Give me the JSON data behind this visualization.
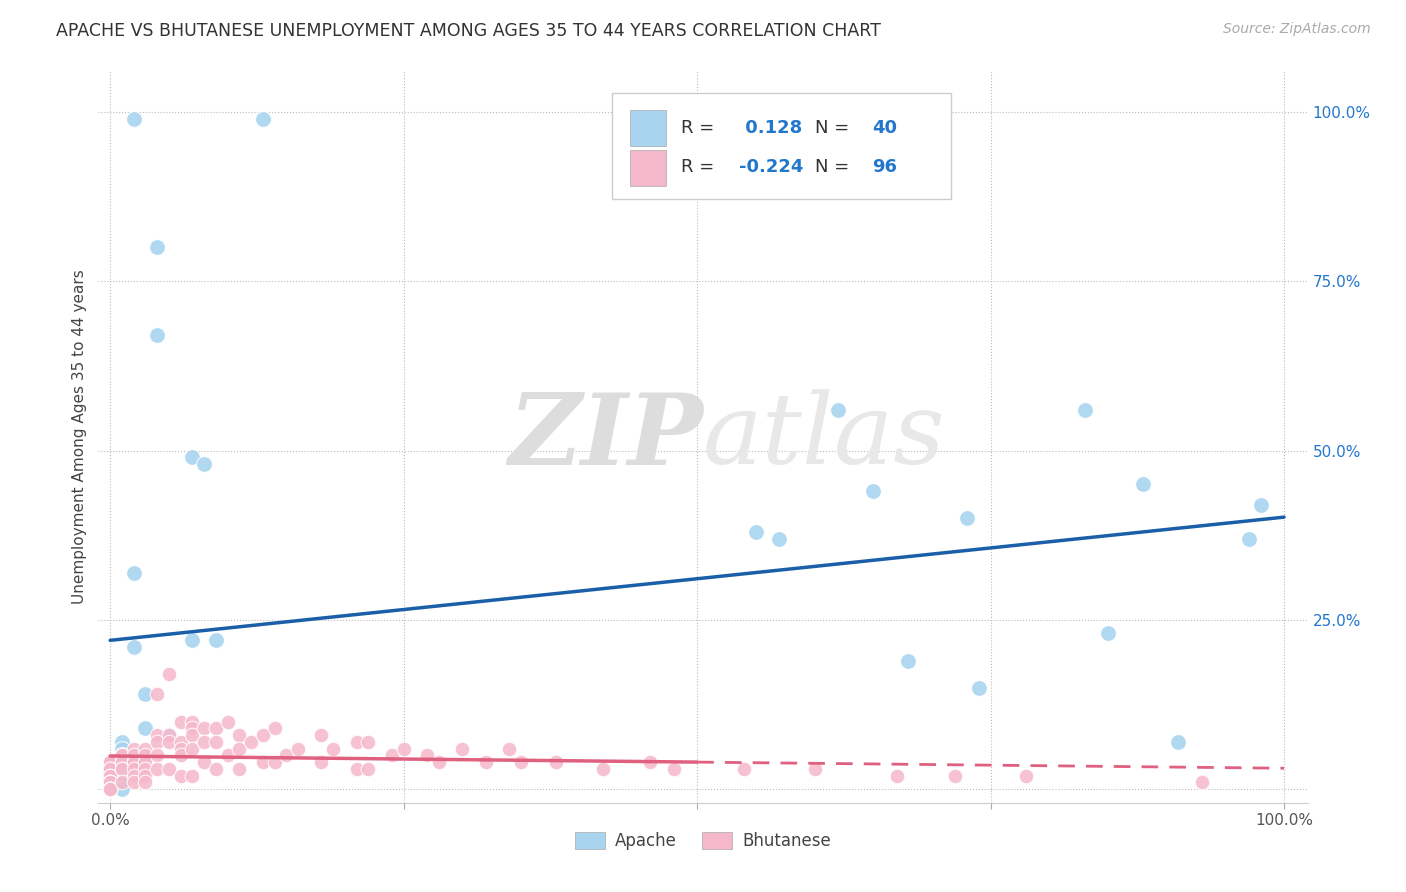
{
  "title": "APACHE VS BHUTANESE UNEMPLOYMENT AMONG AGES 35 TO 44 YEARS CORRELATION CHART",
  "source": "Source: ZipAtlas.com",
  "ylabel": "Unemployment Among Ages 35 to 44 years",
  "xlim": [
    -0.01,
    1.02
  ],
  "ylim": [
    -0.02,
    1.06
  ],
  "xticks": [
    0.0,
    0.25,
    0.5,
    0.75,
    1.0
  ],
  "xtick_labels": [
    "0.0%",
    "",
    "",
    "",
    "100.0%"
  ],
  "yticks": [
    0.0,
    0.25,
    0.5,
    0.75,
    1.0
  ],
  "ytick_labels": [
    "",
    "25.0%",
    "50.0%",
    "75.0%",
    "100.0%"
  ],
  "apache_color": "#a8d4f0",
  "bhutanese_color": "#f5b8cb",
  "apache_line_color": "#1a5fa8",
  "bhutanese_line_color": "#e06080",
  "apache_R": 0.128,
  "apache_N": 40,
  "bhutanese_R": -0.224,
  "bhutanese_N": 96,
  "watermark_zip": "ZIP",
  "watermark_atlas": "atlas",
  "background_color": "#ffffff",
  "apache_x": [
    0.02,
    0.04,
    0.04,
    0.13,
    0.02,
    0.07,
    0.08,
    0.07,
    0.09,
    0.02,
    0.03,
    0.03,
    0.05,
    0.05,
    0.01,
    0.01,
    0.01,
    0.02,
    0.02,
    0.01,
    0.0,
    0.0,
    0.0,
    0.0,
    0.0,
    0.01,
    0.01,
    0.55,
    0.57,
    0.62,
    0.65,
    0.68,
    0.73,
    0.74,
    0.83,
    0.85,
    0.88,
    0.91,
    0.98,
    0.97
  ],
  "apache_y": [
    0.32,
    0.8,
    0.67,
    0.99,
    0.99,
    0.49,
    0.48,
    0.22,
    0.22,
    0.21,
    0.14,
    0.09,
    0.08,
    0.08,
    0.07,
    0.06,
    0.05,
    0.04,
    0.04,
    0.03,
    0.03,
    0.02,
    0.02,
    0.01,
    0.01,
    0.01,
    0.0,
    0.38,
    0.37,
    0.56,
    0.44,
    0.19,
    0.4,
    0.15,
    0.56,
    0.23,
    0.45,
    0.07,
    0.42,
    0.37
  ],
  "bhutanese_x": [
    0.0,
    0.0,
    0.0,
    0.0,
    0.0,
    0.0,
    0.0,
    0.0,
    0.0,
    0.0,
    0.0,
    0.0,
    0.0,
    0.0,
    0.01,
    0.01,
    0.01,
    0.01,
    0.01,
    0.01,
    0.01,
    0.02,
    0.02,
    0.02,
    0.02,
    0.02,
    0.02,
    0.02,
    0.03,
    0.03,
    0.03,
    0.03,
    0.03,
    0.03,
    0.04,
    0.04,
    0.04,
    0.04,
    0.04,
    0.05,
    0.05,
    0.05,
    0.05,
    0.06,
    0.06,
    0.06,
    0.06,
    0.06,
    0.07,
    0.07,
    0.07,
    0.07,
    0.07,
    0.08,
    0.08,
    0.08,
    0.09,
    0.09,
    0.09,
    0.1,
    0.1,
    0.11,
    0.11,
    0.11,
    0.12,
    0.13,
    0.13,
    0.14,
    0.14,
    0.15,
    0.16,
    0.18,
    0.18,
    0.19,
    0.21,
    0.21,
    0.22,
    0.22,
    0.24,
    0.25,
    0.27,
    0.28,
    0.3,
    0.32,
    0.34,
    0.35,
    0.38,
    0.42,
    0.46,
    0.48,
    0.54,
    0.6,
    0.67,
    0.72,
    0.78,
    0.93
  ],
  "bhutanese_y": [
    0.04,
    0.04,
    0.03,
    0.03,
    0.02,
    0.02,
    0.01,
    0.01,
    0.01,
    0.0,
    0.0,
    0.0,
    0.0,
    0.0,
    0.05,
    0.05,
    0.04,
    0.04,
    0.03,
    0.03,
    0.01,
    0.06,
    0.05,
    0.04,
    0.04,
    0.03,
    0.02,
    0.01,
    0.06,
    0.05,
    0.04,
    0.03,
    0.02,
    0.01,
    0.14,
    0.08,
    0.07,
    0.05,
    0.03,
    0.17,
    0.08,
    0.07,
    0.03,
    0.1,
    0.07,
    0.06,
    0.05,
    0.02,
    0.1,
    0.09,
    0.08,
    0.06,
    0.02,
    0.09,
    0.07,
    0.04,
    0.09,
    0.07,
    0.03,
    0.1,
    0.05,
    0.08,
    0.06,
    0.03,
    0.07,
    0.08,
    0.04,
    0.09,
    0.04,
    0.05,
    0.06,
    0.08,
    0.04,
    0.06,
    0.07,
    0.03,
    0.07,
    0.03,
    0.05,
    0.06,
    0.05,
    0.04,
    0.06,
    0.04,
    0.06,
    0.04,
    0.04,
    0.03,
    0.04,
    0.03,
    0.03,
    0.03,
    0.02,
    0.02,
    0.02,
    0.01
  ]
}
